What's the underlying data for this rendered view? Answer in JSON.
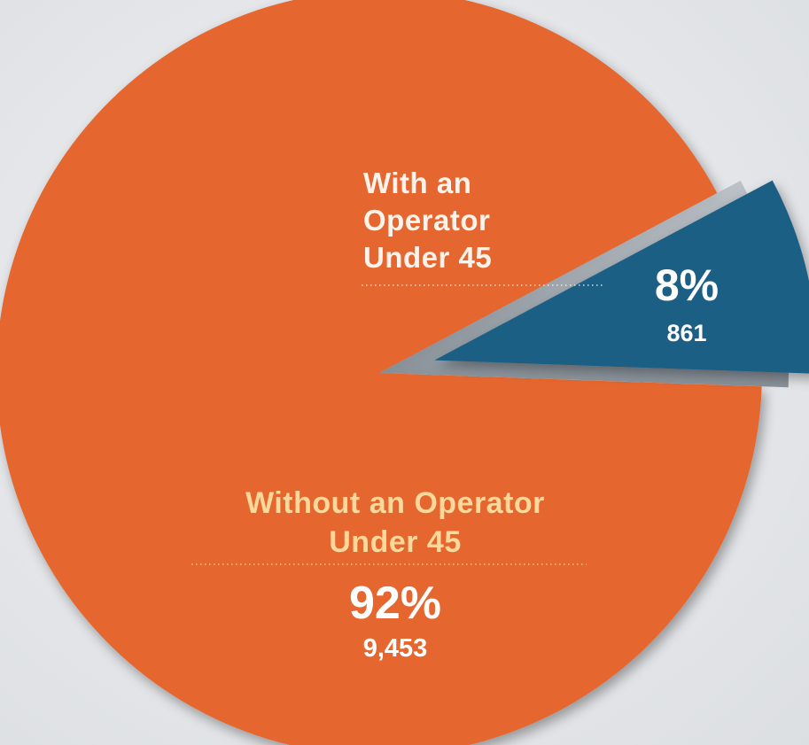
{
  "colors": {
    "major_slice": "#e5662f",
    "minor_slice": "#1e5e85",
    "wedge_gap": "#9aa2aa",
    "major_label": "#fcd99b",
    "minor_label": "#fbf3ec",
    "value_text": "#ffffff"
  },
  "chart_data": {
    "type": "pie",
    "slices": [
      {
        "label_lines": [
          "With an",
          "Operator",
          "Under 45"
        ],
        "percent_label": "8%",
        "count_label": "861",
        "value": 861,
        "exploded": true
      },
      {
        "label_lines": [
          "Without an Operator",
          "Under 45"
        ],
        "percent_label": "92%",
        "count_label": "9,453",
        "value": 9453,
        "exploded": false
      }
    ]
  }
}
